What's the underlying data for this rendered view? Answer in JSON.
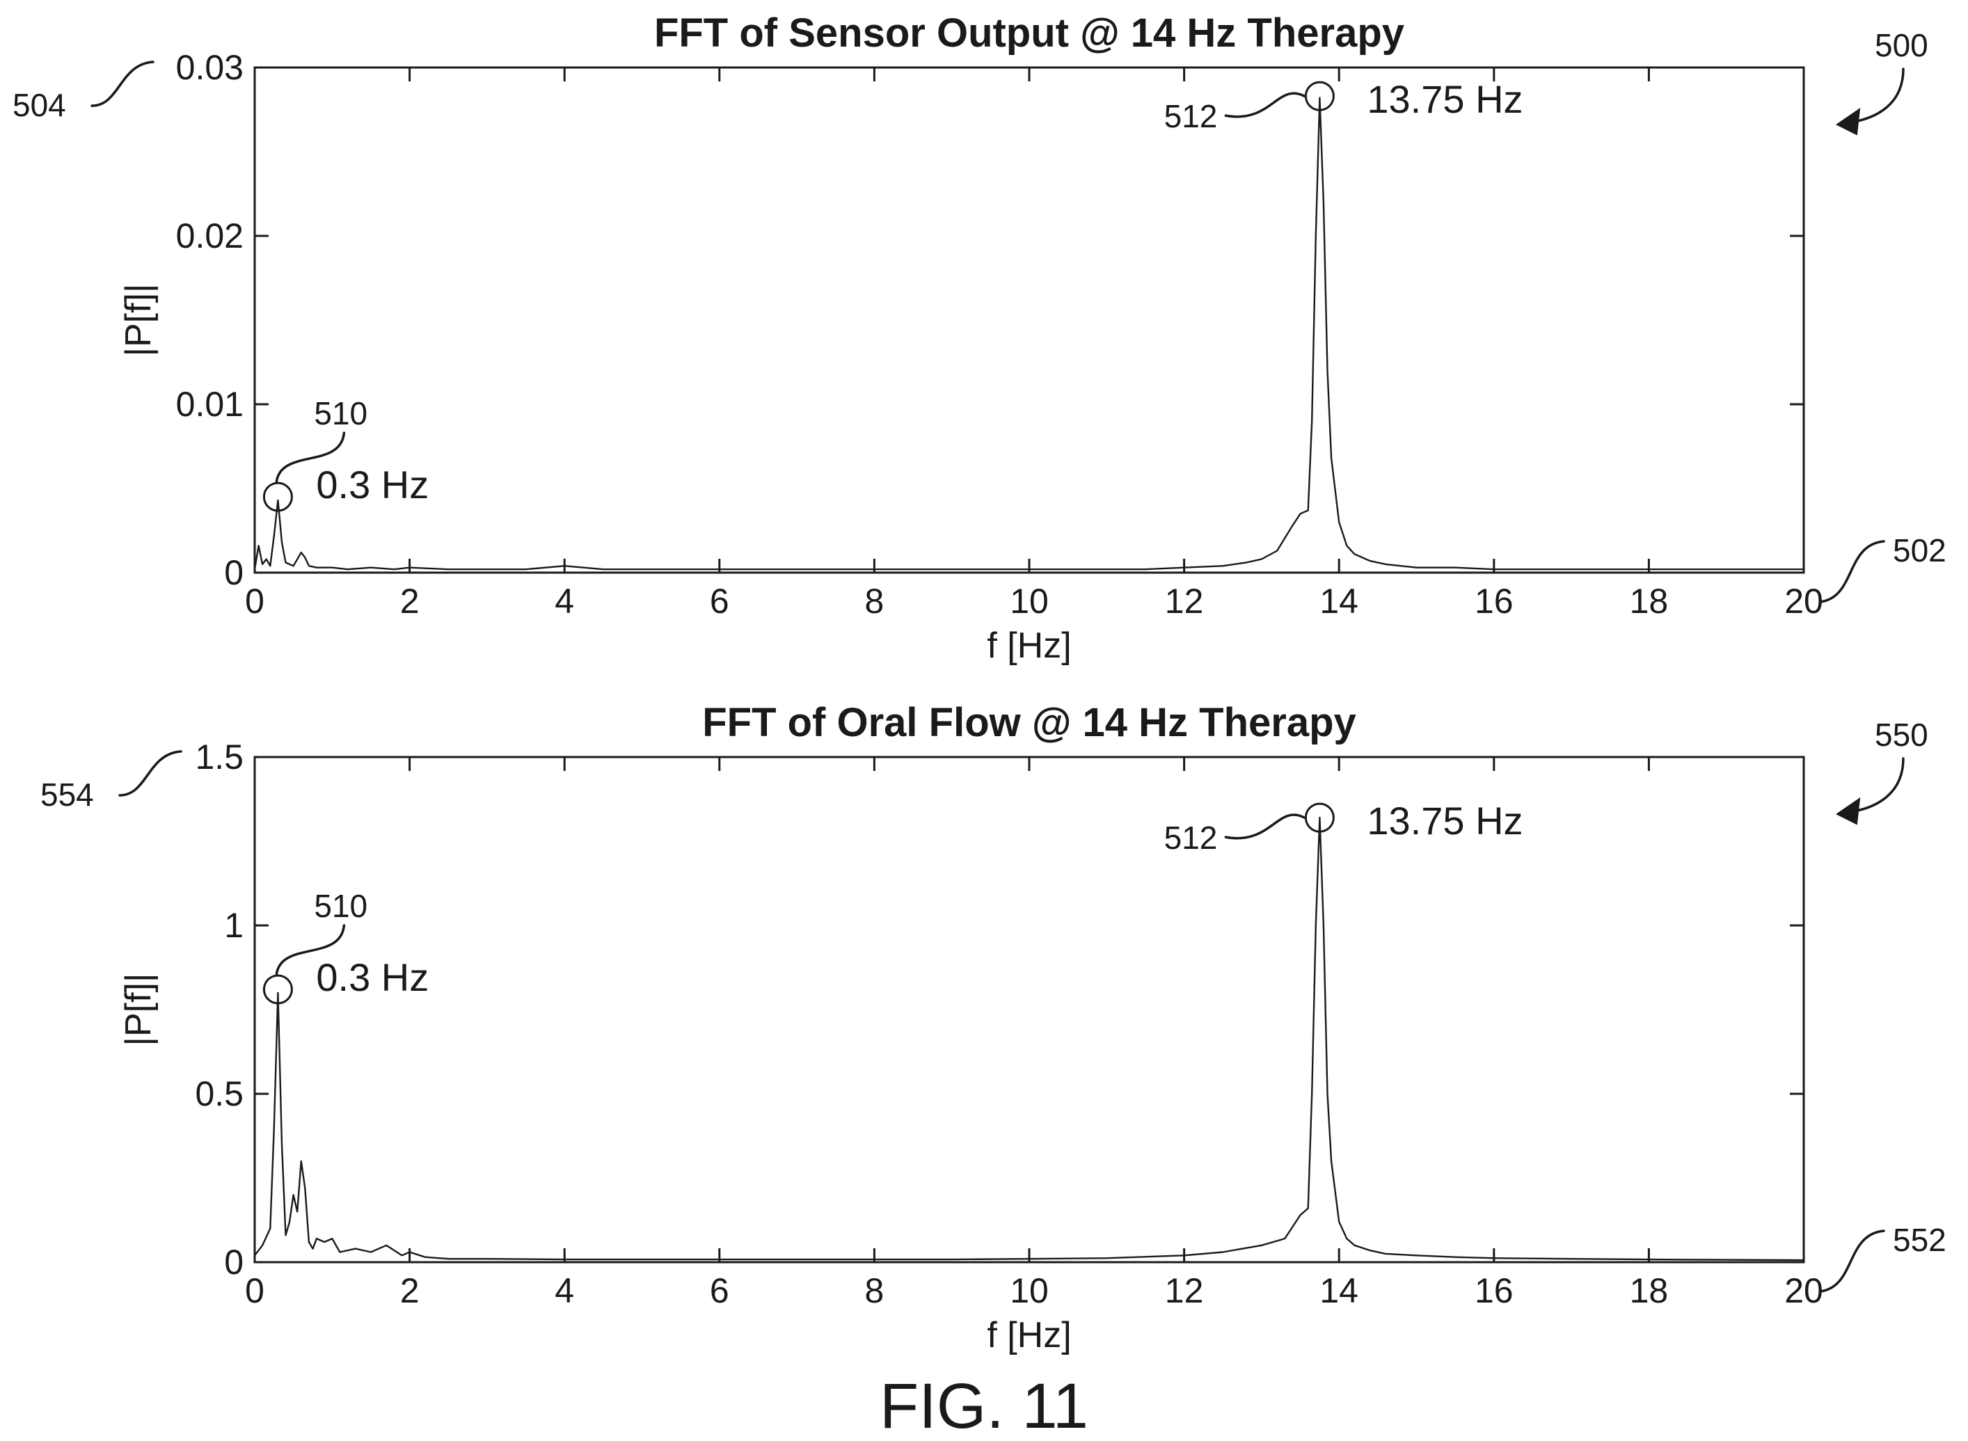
{
  "figure_label": "FIG. 11",
  "chart_data": [
    {
      "type": "line",
      "title": "FFT of Sensor Output @ 14 Hz Therapy",
      "xlabel": "f [Hz]",
      "ylabel": "|P[f]|",
      "xlim": [
        0,
        20
      ],
      "ylim": [
        0,
        0.03
      ],
      "xticks": [
        0,
        2,
        4,
        6,
        8,
        10,
        12,
        14,
        16,
        18,
        20
      ],
      "xtick_labels": [
        "0",
        "2",
        "4",
        "6",
        "8",
        "10",
        "12",
        "14",
        "16",
        "18",
        "20"
      ],
      "yticks": [
        0,
        0.01,
        0.02,
        0.03
      ],
      "ytick_labels": [
        "0",
        "0.01",
        "0.02",
        "0.03"
      ],
      "grid": false,
      "series": [
        {
          "x": [
            0,
            0.05,
            0.1,
            0.15,
            0.2,
            0.25,
            0.3,
            0.35,
            0.4,
            0.5,
            0.6,
            0.65,
            0.7,
            0.8,
            1.0,
            1.2,
            1.5,
            1.8,
            2.0,
            2.5,
            3.0,
            3.5,
            4.0,
            4.5,
            5.0,
            6.0,
            7.0,
            8.0,
            9.0,
            10.0,
            11.0,
            11.5,
            12.0,
            12.5,
            12.8,
            13.0,
            13.2,
            13.4,
            13.5,
            13.6,
            13.65,
            13.7,
            13.75,
            13.8,
            13.85,
            13.9,
            14.0,
            14.1,
            14.2,
            14.4,
            14.6,
            14.8,
            15.0,
            15.5,
            16.0,
            17.0,
            18.0,
            19.0,
            20.0
          ],
          "y": [
            0.0002,
            0.0016,
            0.0005,
            0.0008,
            0.0004,
            0.0022,
            0.0043,
            0.0018,
            0.0006,
            0.0004,
            0.0012,
            0.0009,
            0.0004,
            0.0003,
            0.0003,
            0.0002,
            0.0003,
            0.0002,
            0.0003,
            0.0002,
            0.0002,
            0.0002,
            0.0004,
            0.0002,
            0.0002,
            0.0002,
            0.0002,
            0.0002,
            0.0002,
            0.0002,
            0.0002,
            0.0002,
            0.0003,
            0.0004,
            0.0006,
            0.0008,
            0.0013,
            0.0028,
            0.0035,
            0.0037,
            0.009,
            0.02,
            0.0282,
            0.022,
            0.012,
            0.0068,
            0.003,
            0.0016,
            0.0011,
            0.0007,
            0.0005,
            0.0004,
            0.0003,
            0.0003,
            0.0002,
            0.0002,
            0.0002,
            0.0002,
            0.0002
          ]
        }
      ],
      "annotations": [
        {
          "text": "0.3 Hz",
          "x": 0.3,
          "y": 0.0045,
          "ref": "510"
        },
        {
          "text": "13.75 Hz",
          "x": 13.75,
          "y": 0.0283,
          "ref": "512"
        }
      ],
      "reference_numerals": {
        "figure": "500",
        "x_axis": "502",
        "y_axis": "504"
      }
    },
    {
      "type": "line",
      "title": "FFT of Oral Flow @ 14 Hz Therapy",
      "xlabel": "f [Hz]",
      "ylabel": "|P[f]|",
      "xlim": [
        0,
        20
      ],
      "ylim": [
        0,
        1.5
      ],
      "xticks": [
        0,
        2,
        4,
        6,
        8,
        10,
        12,
        14,
        16,
        18,
        20
      ],
      "xtick_labels": [
        "0",
        "2",
        "4",
        "6",
        "8",
        "10",
        "12",
        "14",
        "16",
        "18",
        "20"
      ],
      "yticks": [
        0,
        0.5,
        1,
        1.5
      ],
      "ytick_labels": [
        "0",
        "0.5",
        "1",
        "1.5"
      ],
      "grid": false,
      "series": [
        {
          "x": [
            0,
            0.1,
            0.2,
            0.25,
            0.3,
            0.35,
            0.4,
            0.45,
            0.5,
            0.55,
            0.6,
            0.65,
            0.7,
            0.75,
            0.8,
            0.9,
            1.0,
            1.1,
            1.3,
            1.5,
            1.7,
            1.9,
            2.0,
            2.2,
            2.5,
            3.0,
            4.0,
            5.0,
            6.0,
            7.0,
            8.0,
            9.0,
            10.0,
            11.0,
            12.0,
            12.5,
            13.0,
            13.3,
            13.5,
            13.6,
            13.65,
            13.7,
            13.75,
            13.8,
            13.85,
            13.9,
            14.0,
            14.1,
            14.2,
            14.4,
            14.6,
            15.0,
            15.5,
            16.0,
            17.0,
            18.0,
            19.0,
            20.0
          ],
          "y": [
            0.02,
            0.05,
            0.1,
            0.4,
            0.8,
            0.35,
            0.08,
            0.12,
            0.2,
            0.15,
            0.3,
            0.22,
            0.06,
            0.04,
            0.07,
            0.06,
            0.07,
            0.03,
            0.04,
            0.03,
            0.05,
            0.02,
            0.03,
            0.015,
            0.01,
            0.01,
            0.008,
            0.008,
            0.008,
            0.008,
            0.008,
            0.008,
            0.01,
            0.012,
            0.02,
            0.03,
            0.05,
            0.07,
            0.14,
            0.16,
            0.5,
            1.0,
            1.32,
            1.0,
            0.5,
            0.3,
            0.12,
            0.07,
            0.05,
            0.035,
            0.025,
            0.02,
            0.015,
            0.012,
            0.01,
            0.008,
            0.007,
            0.006
          ]
        }
      ],
      "annotations": [
        {
          "text": "0.3 Hz",
          "x": 0.3,
          "y": 0.81,
          "ref": "510"
        },
        {
          "text": "13.75 Hz",
          "x": 13.75,
          "y": 1.32,
          "ref": "512"
        }
      ],
      "reference_numerals": {
        "figure": "550",
        "x_axis": "552",
        "y_axis": "554"
      }
    }
  ]
}
